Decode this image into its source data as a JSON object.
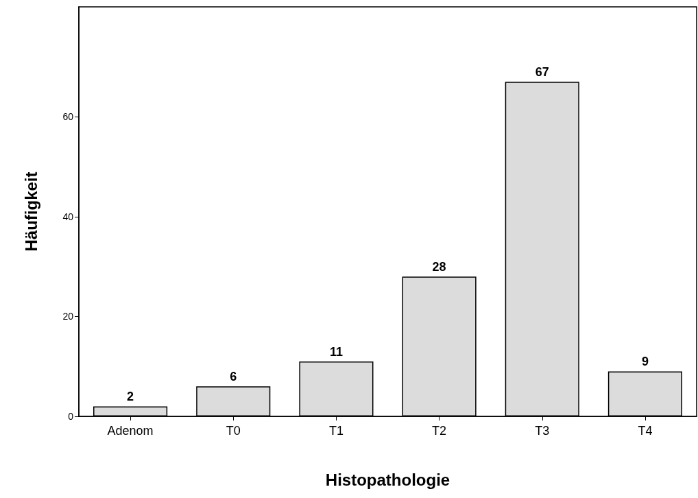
{
  "chart_data": {
    "type": "bar",
    "xlabel": "Histopathologie",
    "ylabel": "Häufigkeit",
    "categories": [
      "Adenom",
      "T0",
      "T1",
      "T2",
      "T3",
      "T4"
    ],
    "values": [
      2,
      6,
      11,
      28,
      67,
      9
    ],
    "color": "#dcdcdc",
    "ylim": [
      0,
      82
    ],
    "yticks": [
      0,
      20,
      40,
      60
    ],
    "grid": false,
    "data_labels": true
  }
}
